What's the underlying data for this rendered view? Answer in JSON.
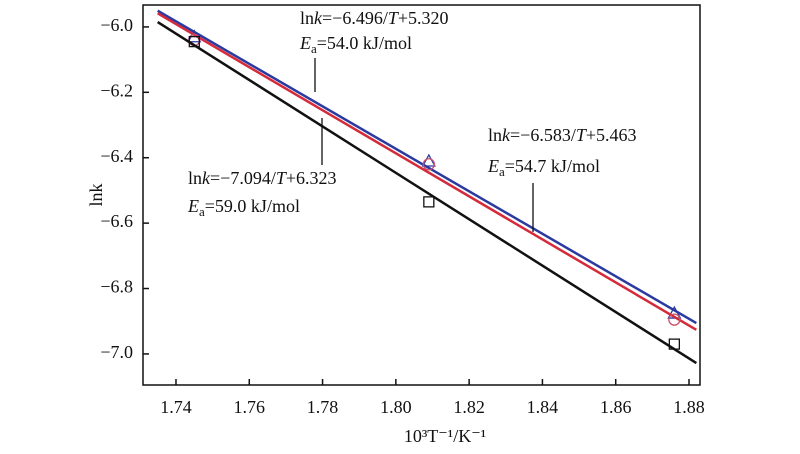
{
  "chart_data": {
    "type": "scatter",
    "xlabel": "10³T⁻¹/K⁻¹",
    "ylabel": "lnk",
    "xlim": [
      1.731,
      1.883
    ],
    "ylim": [
      -7.095,
      -5.933
    ],
    "xticks": [
      1.74,
      1.76,
      1.78,
      {
        "value": 1.8,
        "label": "1.80"
      },
      1.82,
      1.84,
      1.86,
      1.88
    ],
    "yticks": [
      {
        "value": -6,
        "label": "−6.0"
      },
      {
        "value": -6.2,
        "label": "−6.2"
      },
      {
        "value": -6.4,
        "label": "−6.4"
      },
      {
        "value": -6.6,
        "label": "−6.6"
      },
      {
        "value": -6.8,
        "label": "−6.8"
      },
      {
        "value": -7,
        "label": "−7.0"
      }
    ],
    "series": [
      {
        "color": "#2b3aa0",
        "marker": "triangle",
        "x": [
          1.745,
          1.809,
          1.876
        ],
        "values": [
          -6.03,
          -6.41,
          -6.875
        ],
        "fit": {
          "slope": -6.496,
          "intercept": 5.32,
          "equation": [
            "ln",
            "k",
            "=−6.496/",
            "T",
            "+5.320"
          ],
          "energy": [
            "E",
            "a",
            "=54.0 kJ/mol"
          ]
        }
      },
      {
        "color": "#d42a3a",
        "marker": "circle",
        "x": [
          1.745,
          1.809,
          1.876
        ],
        "values": [
          -6.04,
          -6.42,
          -6.895
        ],
        "fit": {
          "slope": -6.583,
          "intercept": 5.463,
          "equation": [
            "ln",
            "k",
            "=−6.583/",
            "T",
            "+5.463"
          ],
          "energy": [
            "E",
            "a",
            "=54.7 kJ/mol"
          ]
        }
      },
      {
        "color": "#111111",
        "marker": "square",
        "x": [
          1.745,
          1.809,
          1.876
        ],
        "values": [
          -6.045,
          -6.535,
          -6.97
        ],
        "fit": {
          "slope": -7.094,
          "intercept": 6.323,
          "equation": [
            "ln",
            "k",
            "=−7.094/",
            "T",
            "+6.323"
          ],
          "energy": [
            "E",
            "a",
            "=59.0 kJ/mol"
          ]
        }
      }
    ]
  }
}
